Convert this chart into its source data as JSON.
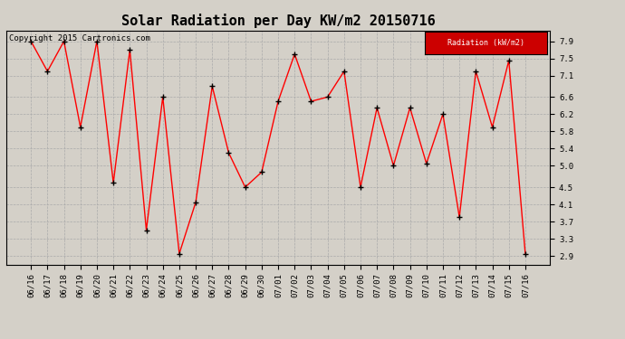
{
  "title": "Solar Radiation per Day KW/m2 20150716",
  "copyright": "Copyright 2015 Cartronics.com",
  "legend_label": "Radiation (kW/m2)",
  "dates": [
    "06/16",
    "06/17",
    "06/18",
    "06/19",
    "06/20",
    "06/21",
    "06/22",
    "06/23",
    "06/24",
    "06/25",
    "06/26",
    "06/27",
    "06/28",
    "06/29",
    "06/30",
    "07/01",
    "07/02",
    "07/03",
    "07/04",
    "07/05",
    "07/06",
    "07/07",
    "07/08",
    "07/09",
    "07/10",
    "07/11",
    "07/12",
    "07/13",
    "07/14",
    "07/15",
    "07/16"
  ],
  "values": [
    7.9,
    7.2,
    7.9,
    5.9,
    7.9,
    4.6,
    7.7,
    3.5,
    6.6,
    2.95,
    4.15,
    6.85,
    5.3,
    4.5,
    4.85,
    6.5,
    7.6,
    6.5,
    6.6,
    7.2,
    4.5,
    6.35,
    5.0,
    6.35,
    5.05,
    6.2,
    3.8,
    7.2,
    5.9,
    7.45,
    2.95
  ],
  "line_color": "red",
  "marker_color": "black",
  "bg_color": "#d4d0c8",
  "plot_bg_color": "#d4d0c8",
  "grid_color": "#aaaaaa",
  "ylim": [
    2.7,
    8.15
  ],
  "yticks": [
    2.9,
    3.3,
    3.7,
    4.1,
    4.5,
    5.0,
    5.4,
    5.8,
    6.2,
    6.6,
    7.1,
    7.5,
    7.9
  ],
  "legend_bg": "#cc0000",
  "legend_text_color": "#ffffff",
  "title_fontsize": 11,
  "tick_fontsize": 6.5,
  "copyright_fontsize": 6.5
}
